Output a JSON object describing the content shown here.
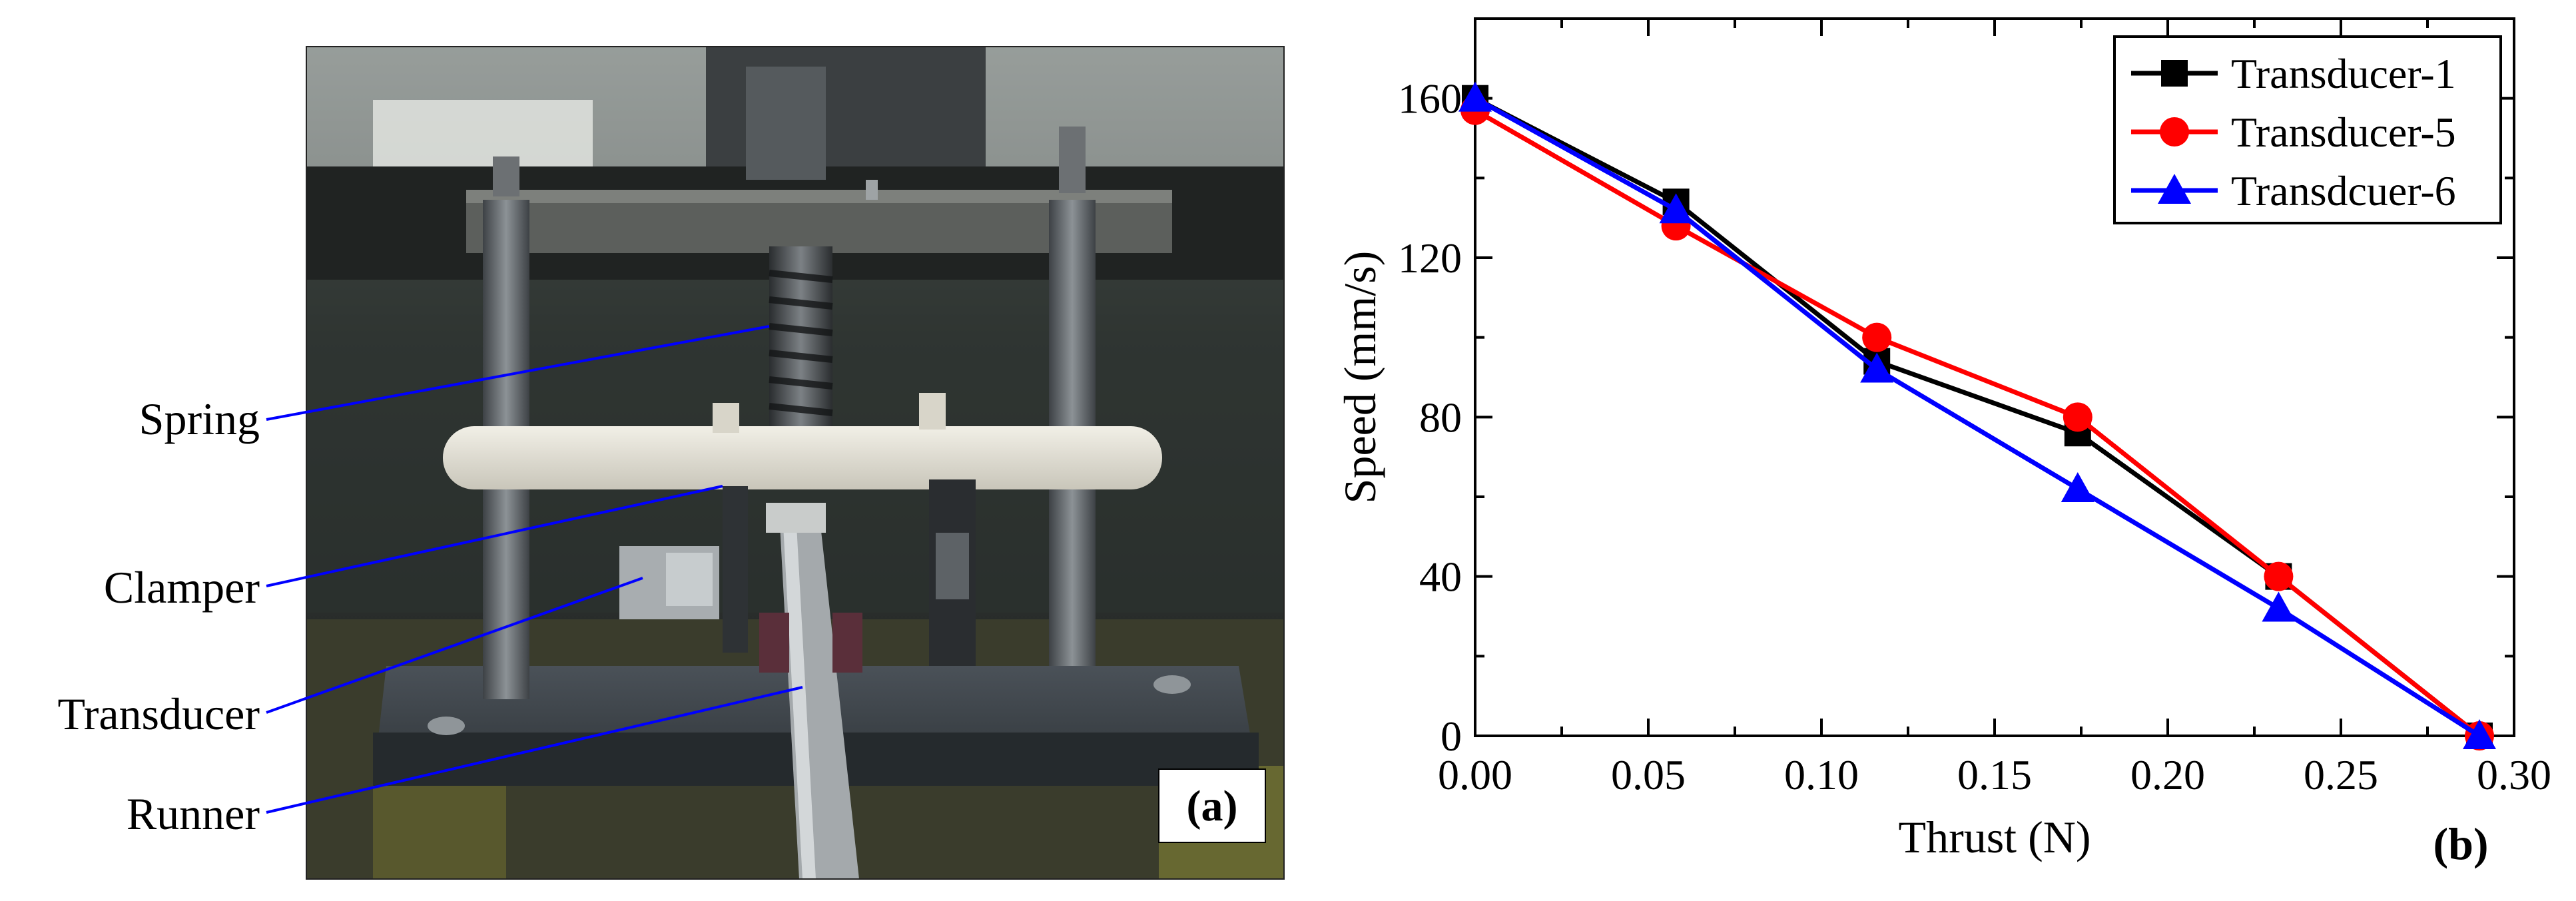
{
  "figure": {
    "panel_a": {
      "label": "(a)",
      "callouts": {
        "spring": "Spring",
        "clamper": "Clamper",
        "transducer": "Transducer",
        "runner": "Runner"
      }
    },
    "panel_b": {
      "label": "(b)"
    }
  },
  "chart_data": {
    "type": "line",
    "title": "",
    "xlabel": "Thrust (N)",
    "ylabel": "Speed (mm/s)",
    "xlim": [
      0.0,
      0.3
    ],
    "ylim": [
      0,
      180
    ],
    "xticks": [
      "0.00",
      "0.05",
      "0.10",
      "0.15",
      "0.20",
      "0.25",
      "0.30"
    ],
    "yticks": [
      "0",
      "40",
      "80",
      "120",
      "160"
    ],
    "grid": false,
    "legend_position": "top-right",
    "series": [
      {
        "name": "Transducer-1",
        "color": "#000000",
        "marker": "square",
        "x": [
          0.0,
          0.058,
          0.116,
          0.174,
          0.232,
          0.29
        ],
        "y": [
          160,
          134,
          94,
          76,
          40,
          0
        ]
      },
      {
        "name": "Transducer-5",
        "color": "#ff0000",
        "marker": "circle",
        "x": [
          0.0,
          0.058,
          0.116,
          0.174,
          0.232,
          0.29
        ],
        "y": [
          157,
          128,
          100,
          80,
          40,
          0
        ]
      },
      {
        "name": "Transdcuer-6",
        "color": "#0000ff",
        "marker": "triangle",
        "x": [
          0.0,
          0.058,
          0.116,
          0.174,
          0.232,
          0.29
        ],
        "y": [
          160,
          132,
          92,
          62,
          32,
          0
        ]
      }
    ]
  }
}
